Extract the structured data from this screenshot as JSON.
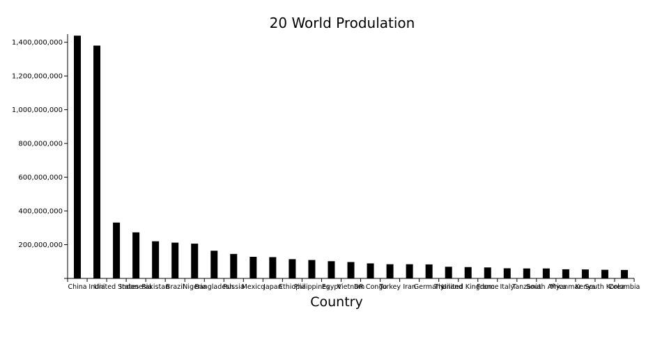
{
  "chart_data": {
    "type": "bar",
    "title": "20 World Produlation",
    "xlabel": "Country",
    "ylabel": "",
    "ylim": [
      0,
      1440000000
    ],
    "yticks": [
      0,
      200000000,
      400000000,
      600000000,
      800000000,
      1000000000,
      1200000000,
      1400000000
    ],
    "ytick_labels": [
      "0",
      "200,000,000",
      "400,000,000",
      "600,000,000",
      "800,000,000",
      "1,000,000,000",
      "1,200,000,000",
      "1,400,000,000"
    ],
    "grid": false,
    "legend": "none",
    "bar_color": "#000000",
    "categories": [
      "China",
      "India",
      "United States",
      "Indonesia",
      "Pakistan",
      "Brazil",
      "Nigeria",
      "Bangladesh",
      "Russia",
      "Mexico",
      "Japan",
      "Ethiopia",
      "Philippines",
      "Egypt",
      "Vietnam",
      "DR Congo",
      "Turkey",
      "Iran",
      "Germany",
      "Thailand",
      "United Kingdom",
      "France",
      "Italy",
      "Tanzania",
      "South Africa",
      "Myanmar",
      "Kenya",
      "South Korea",
      "Colombia"
    ],
    "values": [
      1439000000,
      1380000000,
      331000000,
      273000000,
      220000000,
      212000000,
      206000000,
      164000000,
      145000000,
      128000000,
      126000000,
      114000000,
      109000000,
      102000000,
      97000000,
      89000000,
      84000000,
      84000000,
      83000000,
      69000000,
      67000000,
      65000000,
      60000000,
      59000000,
      59000000,
      54000000,
      53000000,
      51000000,
      50000000
    ]
  }
}
